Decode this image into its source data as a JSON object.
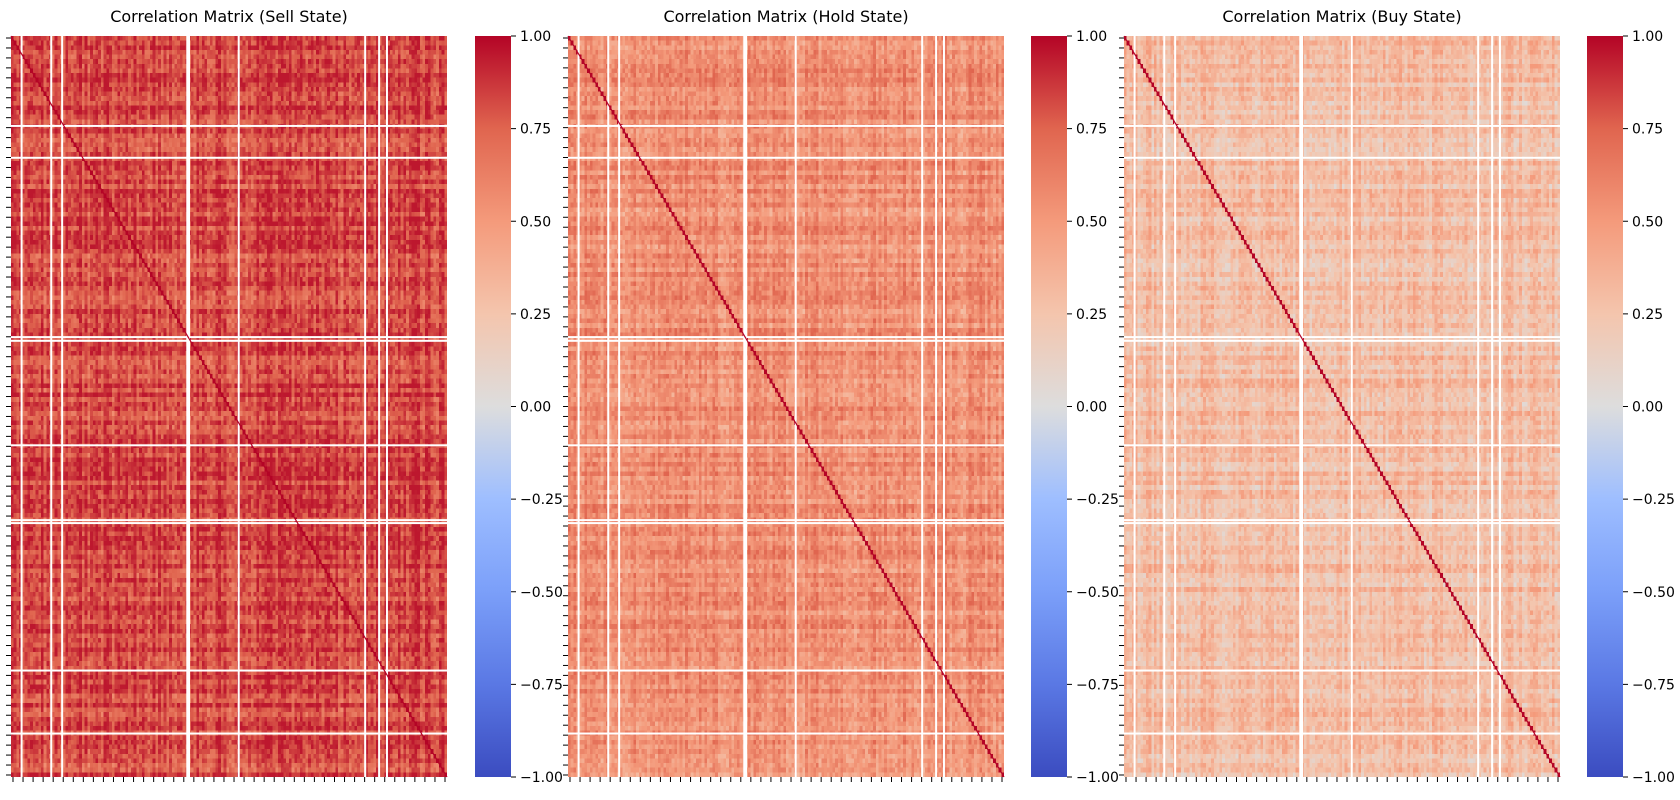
{
  "chart_data": [
    {
      "type": "heatmap",
      "title": "Correlation Matrix (Sell State)",
      "xlabel": "",
      "ylabel": "",
      "value_range": [
        -1.0,
        1.0
      ],
      "colormap": "coolwarm",
      "colorbar_ticks": [
        "1.00",
        "0.75",
        "0.50",
        "0.25",
        "0.00",
        "−0.25",
        "−0.50",
        "−0.75",
        "−1.00"
      ],
      "colorbar_values": [
        1.0,
        0.75,
        0.5,
        0.25,
        0.0,
        -0.25,
        -0.5,
        -0.75,
        -1.0
      ],
      "diagonal_value": 1.0,
      "typical_offdiagonal_correlation": 0.82,
      "approx_offdiagonal_range": [
        0.6,
        0.95
      ],
      "tick_labels_shown": false
    },
    {
      "type": "heatmap",
      "title": "Correlation Matrix (Hold State)",
      "xlabel": "",
      "ylabel": "",
      "value_range": [
        -1.0,
        1.0
      ],
      "colormap": "coolwarm",
      "colorbar_ticks": [
        "1.00",
        "0.75",
        "0.50",
        "0.25",
        "0.00",
        "−0.25",
        "−0.50",
        "−0.75",
        "−1.00"
      ],
      "colorbar_values": [
        1.0,
        0.75,
        0.5,
        0.25,
        0.0,
        -0.25,
        -0.5,
        -0.75,
        -1.0
      ],
      "diagonal_value": 1.0,
      "typical_offdiagonal_correlation": 0.55,
      "approx_offdiagonal_range": [
        0.35,
        0.75
      ],
      "tick_labels_shown": false
    },
    {
      "type": "heatmap",
      "title": "Correlation Matrix (Buy State)",
      "xlabel": "",
      "ylabel": "",
      "value_range": [
        -1.0,
        1.0
      ],
      "colormap": "coolwarm",
      "colorbar_ticks": [
        "1.00",
        "0.75",
        "0.50",
        "0.25",
        "0.00",
        "−0.25",
        "−0.50",
        "−0.75",
        "−1.00"
      ],
      "colorbar_values": [
        1.0,
        0.75,
        0.5,
        0.25,
        0.0,
        -0.25,
        -0.5,
        -0.75,
        -1.0
      ],
      "diagonal_value": 1.0,
      "typical_offdiagonal_correlation": 0.3,
      "approx_offdiagonal_range": [
        0.1,
        0.5
      ],
      "tick_labels_shown": false
    }
  ],
  "colors": {
    "cmap_low": "#3b4cc0",
    "cmap_mid": "#dddddd",
    "cmap_high": "#b40426",
    "gap_lines": "#ffffff"
  }
}
